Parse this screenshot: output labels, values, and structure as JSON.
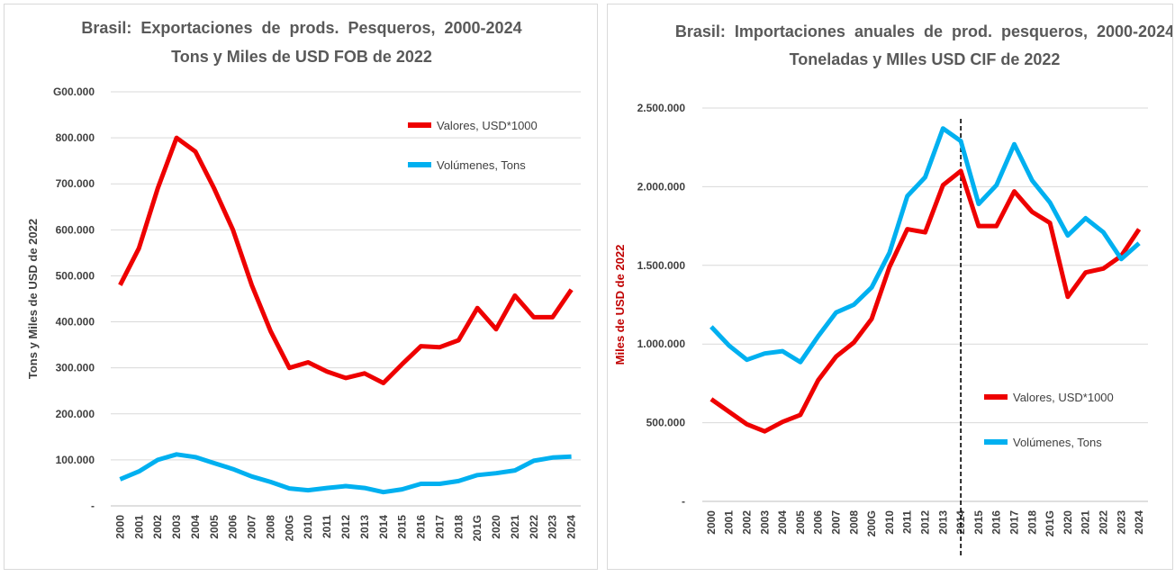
{
  "chart_data": [
    {
      "type": "line",
      "title": "Brasil:  Exportaciones  de  prods.  Pesqueros,  2000-2024",
      "subtitle": "Tons y Miles de USD FOB de 2022",
      "xlabel": "",
      "ylabel": "Tons y Miles de USD de 2022",
      "ylim": [
        0,
        900000
      ],
      "y_ticks": [
        "-",
        "100.000",
        "200.000",
        "300.000",
        "400.000",
        "500.000",
        "600.000",
        "700.000",
        "800.000",
        "G00.000"
      ],
      "y_tick_values": [
        0,
        100000,
        200000,
        300000,
        400000,
        500000,
        600000,
        700000,
        800000,
        900000
      ],
      "grid": true,
      "legend_position": "top-right",
      "categories": [
        "2000",
        "2001",
        "2002",
        "2003",
        "2004",
        "2005",
        "2006",
        "2007",
        "2008",
        "200G",
        "2010",
        "2011",
        "2012",
        "2013",
        "2014",
        "2015",
        "2016",
        "2017",
        "2018",
        "201G",
        "2020",
        "2021",
        "2022",
        "2023",
        "2024"
      ],
      "series": [
        {
          "name": "Valores, USD*1000",
          "color": "#ee0000",
          "values": [
            480000,
            560000,
            690000,
            800000,
            770000,
            690000,
            600000,
            480000,
            380000,
            300000,
            312000,
            292000,
            278000,
            288000,
            267000,
            308000,
            347000,
            345000,
            360000,
            430000,
            384000,
            457000,
            410000,
            410000,
            470000
          ]
        },
        {
          "name": "Volúmenes, Tons",
          "color": "#00b0f0",
          "values": [
            58000,
            75000,
            100000,
            112000,
            106000,
            93000,
            80000,
            64000,
            52000,
            38000,
            34000,
            39000,
            43000,
            39000,
            30000,
            36000,
            48000,
            48000,
            54000,
            67000,
            71000,
            77000,
            98000,
            105000,
            107000
          ]
        }
      ]
    },
    {
      "type": "line",
      "title": "Brasil:  Importaciones  anuales  de  prod.  pesqueros,  2000-2024",
      "subtitle": "Toneladas y MIles USD CIF de 2022",
      "xlabel": "",
      "ylabel": "Miles de USD de 2022",
      "ylabel_color": "#c00000",
      "ylim": [
        0,
        2500000
      ],
      "y_ticks": [
        "-",
        "500.000",
        "1.000.000",
        "1.500.000",
        "2.000.000",
        "2.500.000"
      ],
      "y_tick_values": [
        0,
        500000,
        1000000,
        1500000,
        2000000,
        2500000
      ],
      "y_tick_color": "#c00000",
      "grid": true,
      "legend_position": "bottom-right",
      "marker_line": {
        "x": "2014",
        "style": "dashed",
        "color": "#000000"
      },
      "categories": [
        "2000",
        "2001",
        "2002",
        "2003",
        "2004",
        "2005",
        "2006",
        "2007",
        "2008",
        "200G",
        "2010",
        "2011",
        "2012",
        "2013",
        "2014",
        "2015",
        "2016",
        "2017",
        "2018",
        "201G",
        "2020",
        "2021",
        "2022",
        "2023",
        "2024"
      ],
      "series": [
        {
          "name": "Valores, USD*1000",
          "color": "#ee0000",
          "values": [
            650000,
            570000,
            490000,
            445000,
            505000,
            550000,
            770000,
            920000,
            1010000,
            1160000,
            1490000,
            1730000,
            1710000,
            2010000,
            2100000,
            1750000,
            1750000,
            1970000,
            1840000,
            1770000,
            1300000,
            1455000,
            1480000,
            1560000,
            1730000
          ]
        },
        {
          "name": "Volúmenes, Tons",
          "color": "#00b0f0",
          "values": [
            1110000,
            990000,
            900000,
            940000,
            955000,
            885000,
            1050000,
            1200000,
            1250000,
            1360000,
            1580000,
            1940000,
            2060000,
            2370000,
            2290000,
            1890000,
            2010000,
            2270000,
            2040000,
            1900000,
            1690000,
            1800000,
            1710000,
            1540000,
            1640000
          ]
        }
      ]
    }
  ]
}
